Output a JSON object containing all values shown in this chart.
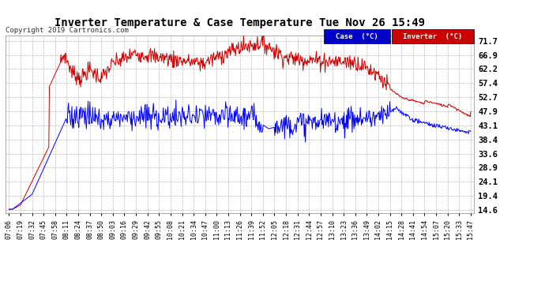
{
  "title": "Inverter Temperature & Case Temperature Tue Nov 26 15:49",
  "copyright": "Copyright 2019 Cartronics.com",
  "background_color": "#ffffff",
  "plot_bg_color": "#ffffff",
  "grid_color": "#aaaaaa",
  "yticks": [
    14.6,
    19.4,
    24.1,
    28.9,
    33.6,
    38.4,
    43.1,
    47.9,
    52.7,
    57.4,
    62.2,
    66.9,
    71.7
  ],
  "ymin": 13.5,
  "ymax": 73.5,
  "legend_case_label": "Case  (°C)",
  "legend_inverter_label": "Inverter  (°C)",
  "case_color": "#0000ff",
  "inverter_color": "#cc0000",
  "case_legend_bg": "#0000cc",
  "inverter_legend_bg": "#cc0000",
  "xtick_labels": [
    "07:06",
    "07:19",
    "07:32",
    "07:45",
    "07:58",
    "08:11",
    "08:24",
    "08:37",
    "08:50",
    "09:03",
    "09:16",
    "09:29",
    "09:42",
    "09:55",
    "10:08",
    "10:21",
    "10:34",
    "10:47",
    "11:00",
    "11:13",
    "11:26",
    "11:39",
    "11:52",
    "12:05",
    "12:18",
    "12:31",
    "12:44",
    "12:57",
    "13:10",
    "13:23",
    "13:36",
    "13:49",
    "14:02",
    "14:15",
    "14:28",
    "14:41",
    "14:54",
    "15:07",
    "15:20",
    "15:33",
    "15:47"
  ],
  "n_points": 800
}
